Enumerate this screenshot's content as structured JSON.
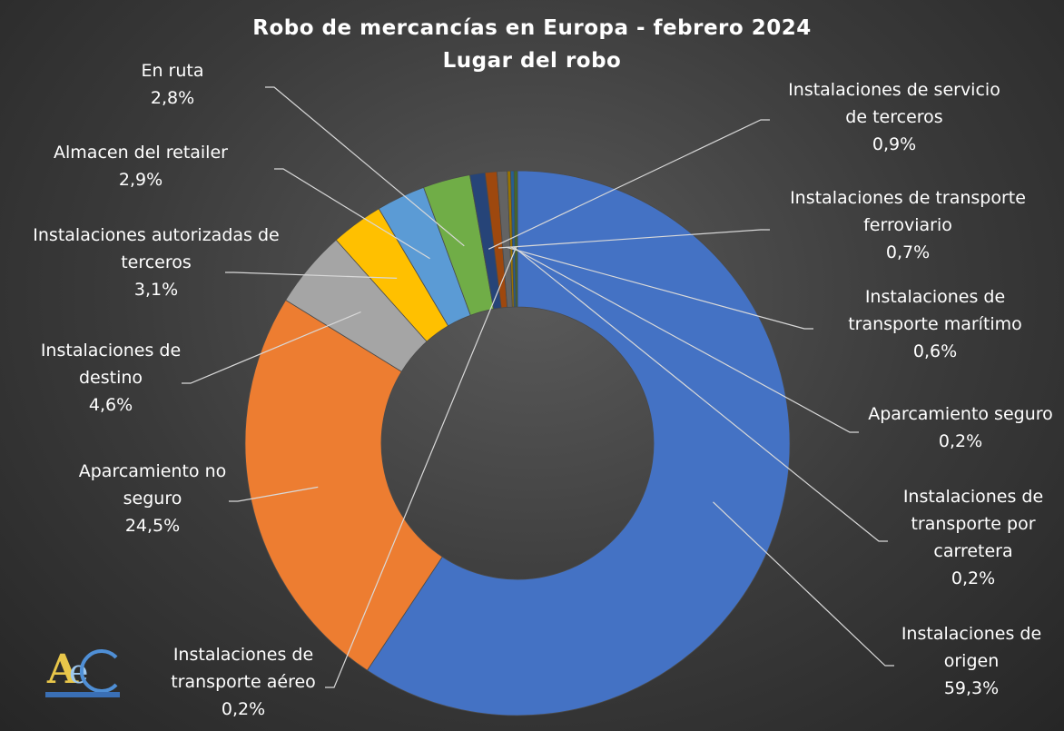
{
  "chart_data": {
    "type": "pie",
    "variant": "donut",
    "title": "Robo de mercancías en Europa - febrero 2024",
    "subtitle": "Lugar del robo",
    "unit": "%",
    "slices": [
      {
        "label": "Instalaciones de origen",
        "value": 59.3,
        "value_text": "59,3%",
        "color": "#4472C4"
      },
      {
        "label": "Aparcamiento no seguro",
        "value": 24.5,
        "value_text": "24,5%",
        "color": "#ED7D31"
      },
      {
        "label": "Instalaciones de destino",
        "value": 4.6,
        "value_text": "4,6%",
        "color": "#A5A5A5"
      },
      {
        "label": "Instalaciones autorizadas de terceros",
        "value": 3.1,
        "value_text": "3,1%",
        "color": "#FFC000"
      },
      {
        "label": "Almacen del retailer",
        "value": 2.9,
        "value_text": "2,9%",
        "color": "#5B9BD5"
      },
      {
        "label": "En ruta",
        "value": 2.8,
        "value_text": "2,8%",
        "color": "#70AD47"
      },
      {
        "label": "Instalaciones de servicio de terceros",
        "value": 0.9,
        "value_text": "0,9%",
        "color": "#264478"
      },
      {
        "label": "Instalaciones de transporte ferroviario",
        "value": 0.7,
        "value_text": "0,7%",
        "color": "#9E480E"
      },
      {
        "label": "Instalaciones de transporte marítimo",
        "value": 0.6,
        "value_text": "0,6%",
        "color": "#636363"
      },
      {
        "label": "Aparcamiento seguro",
        "value": 0.2,
        "value_text": "0,2%",
        "color": "#997300"
      },
      {
        "label": "Instalaciones de transporte por carretera",
        "value": 0.2,
        "value_text": "0,2%",
        "color": "#255E91"
      },
      {
        "label": "Instalaciones de transporte aéreo",
        "value": 0.2,
        "value_text": "0,2%",
        "color": "#43682B"
      }
    ],
    "legend": "none",
    "data_labels": "outside with leader lines"
  },
  "logo": {
    "text": "AeC"
  }
}
